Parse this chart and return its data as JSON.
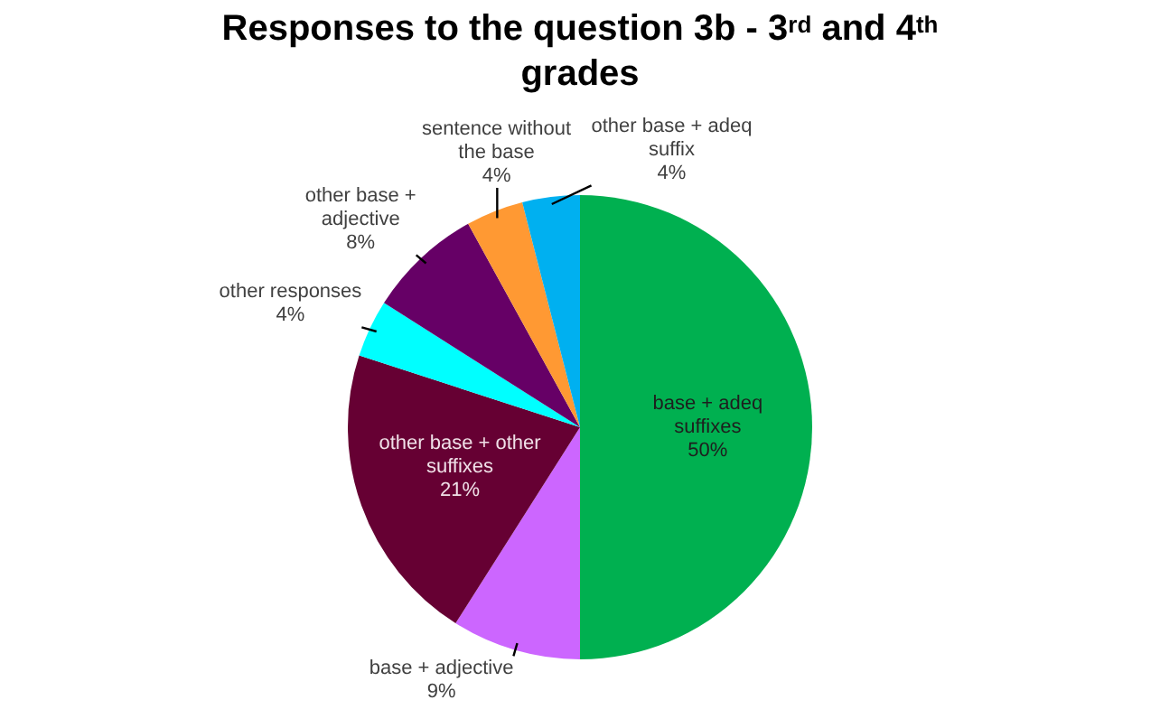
{
  "chart_data": {
    "type": "pie",
    "title": "Responses to the question 3b - 3$^{rd}$ and 4$^{th}$ grades",
    "categories": [
      "base + adeq suffixes",
      "base + adjective",
      "other base + other suffixes",
      "other responses",
      "other base + adjective",
      "sentence without the base",
      "other base + adeq suffix"
    ],
    "values": [
      50,
      9,
      21,
      4,
      8,
      4,
      4
    ],
    "value_labels": [
      "50%",
      "9%",
      "21%",
      "4%",
      "8%",
      "4%",
      "4%"
    ],
    "colors": [
      "#00b050",
      "#cc66ff",
      "#660033",
      "#00ffff",
      "#660066",
      "#ff9933",
      "#00b0f0"
    ],
    "legend": false
  }
}
